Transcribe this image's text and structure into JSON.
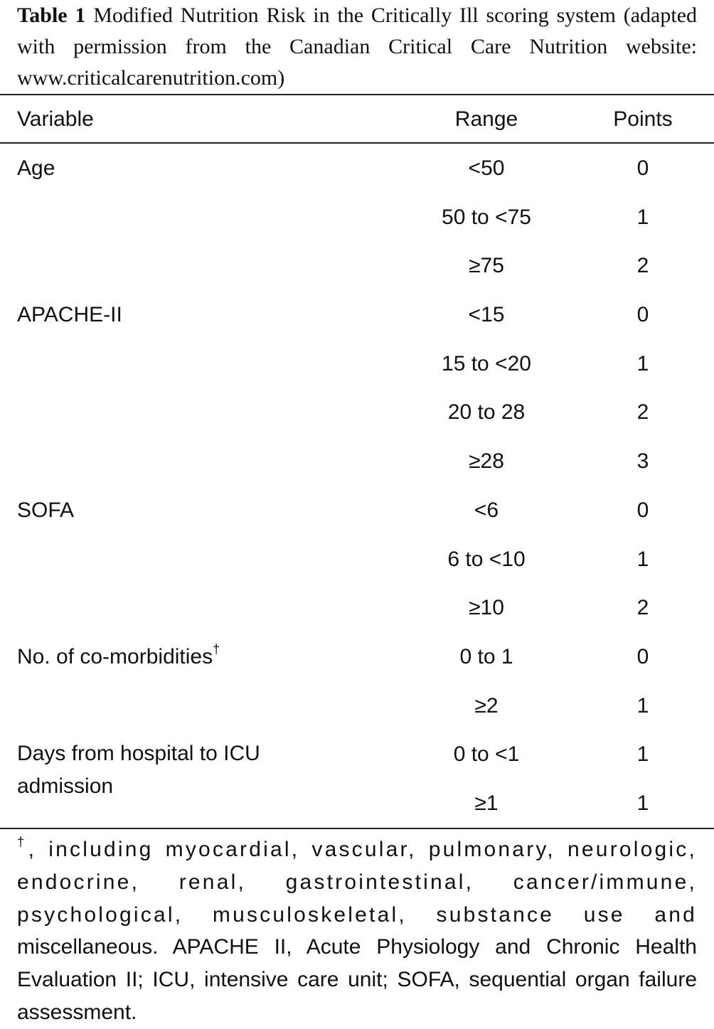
{
  "caption": {
    "label": "Table 1",
    "text": "Modified Nutrition Risk in the Critically Ill scoring system (adapted with permission from the Canadian Critical Care Nutrition website: www.criticalcarenutrition.com)"
  },
  "table": {
    "headers": {
      "variable": "Variable",
      "range": "Range",
      "points": "Points"
    },
    "rows": [
      {
        "variable": "Age",
        "range": "<50",
        "points": "0"
      },
      {
        "variable": "",
        "range": "50 to <75",
        "points": "1"
      },
      {
        "variable": "",
        "range": "≥75",
        "points": "2"
      },
      {
        "variable": "APACHE-II",
        "range": "<15",
        "points": "0"
      },
      {
        "variable": "",
        "range": "15 to <20",
        "points": "1"
      },
      {
        "variable": "",
        "range": "20 to 28",
        "points": "2"
      },
      {
        "variable": "",
        "range": "≥28",
        "points": "3"
      },
      {
        "variable": "SOFA",
        "range": "<6",
        "points": "0"
      },
      {
        "variable": "",
        "range": "6 to <10",
        "points": "1"
      },
      {
        "variable": "",
        "range": "≥10",
        "points": "2"
      },
      {
        "variable": "No. of co-morbidities",
        "variable_mark": "†",
        "range": "0 to 1",
        "points": "0"
      },
      {
        "variable": "",
        "range": "≥2",
        "points": "1"
      },
      {
        "variable": "Days from hospital to ICU admission",
        "range": "0 to <1",
        "points": "1"
      },
      {
        "variable": "",
        "range": "≥1",
        "points": "1"
      }
    ]
  },
  "footnote": {
    "mark": "†",
    "spaced_text": ", including myocardial, vascular, pulmonary, neurologic, endocrine, renal, gastrointestinal, cancer/immune, psychological, musculoskeletal, substance use and",
    "text": "miscellaneous. APACHE II, Acute Physiology and Chronic Health Evaluation II; ICU, intensive care unit; SOFA, sequential organ failure assessment."
  }
}
